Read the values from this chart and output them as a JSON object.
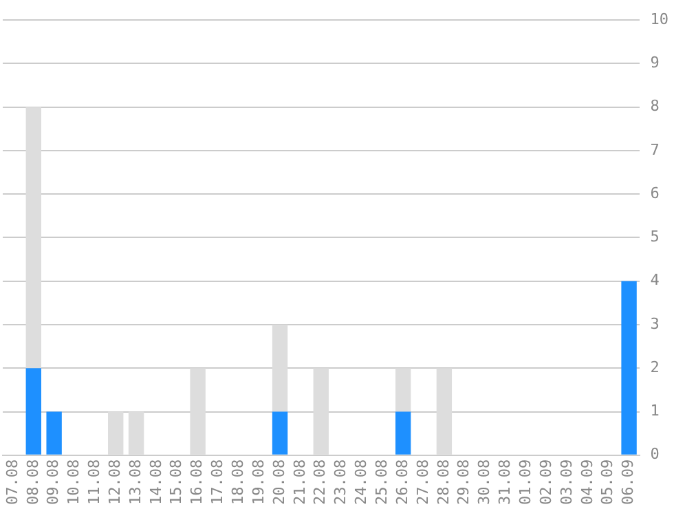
{
  "chart_data": {
    "type": "bar",
    "stacked": true,
    "categories": [
      "07.08",
      "08.08",
      "09.08",
      "10.08",
      "11.08",
      "12.08",
      "13.08",
      "14.08",
      "15.08",
      "16.08",
      "17.08",
      "18.08",
      "19.08",
      "20.08",
      "21.08",
      "22.08",
      "23.08",
      "24.08",
      "25.08",
      "26.08",
      "27.08",
      "28.08",
      "29.08",
      "30.08",
      "31.08",
      "01.09",
      "02.09",
      "03.09",
      "04.09",
      "05.09",
      "06.09"
    ],
    "series": [
      {
        "color": "#1e90ff",
        "values": [
          0,
          2,
          1,
          0,
          0,
          0,
          0,
          0,
          0,
          0,
          0,
          0,
          0,
          1,
          0,
          0,
          0,
          0,
          0,
          1,
          0,
          0,
          0,
          0,
          0,
          0,
          0,
          0,
          0,
          0,
          4
        ]
      },
      {
        "color": "#dddddd",
        "values": [
          0,
          6,
          0,
          0,
          0,
          1,
          1,
          0,
          0,
          2,
          0,
          0,
          0,
          2,
          0,
          2,
          0,
          0,
          0,
          1,
          0,
          2,
          0,
          0,
          0,
          0,
          0,
          0,
          0,
          0,
          0
        ]
      }
    ],
    "ylim": [
      0,
      10
    ],
    "yticks": [
      0,
      1,
      2,
      3,
      4,
      5,
      6,
      7,
      8,
      9,
      10
    ],
    "grid": "y",
    "legend": false
  }
}
